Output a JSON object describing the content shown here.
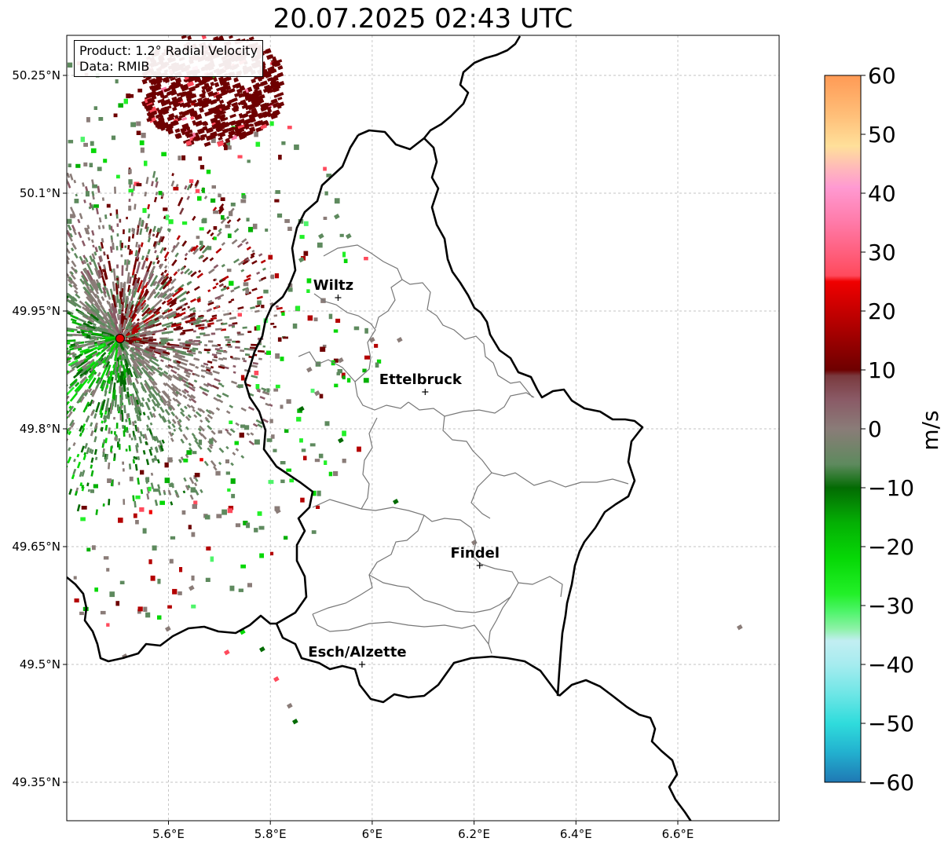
{
  "title": "20.07.2025 02:43 UTC",
  "info": {
    "product": "Product: 1.2° Radial Velocity",
    "source": "Data: RMIB"
  },
  "map": {
    "lon_range": [
      5.4,
      6.8
    ],
    "lat_range": [
      49.3,
      50.3
    ],
    "x_ticks": [
      {
        "lon": 5.6,
        "label": "5.6°E"
      },
      {
        "lon": 5.8,
        "label": "5.8°E"
      },
      {
        "lon": 6.0,
        "label": "6°E"
      },
      {
        "lon": 6.2,
        "label": "6.2°E"
      },
      {
        "lon": 6.4,
        "label": "6.4°E"
      },
      {
        "lon": 6.6,
        "label": "6.6°E"
      }
    ],
    "y_ticks": [
      {
        "lat": 50.25,
        "label": "50.25°N"
      },
      {
        "lat": 50.1,
        "label": "50.1°N"
      },
      {
        "lat": 49.95,
        "label": "49.95°N"
      },
      {
        "lat": 49.8,
        "label": "49.8°N"
      },
      {
        "lat": 49.65,
        "label": "49.65°N"
      },
      {
        "lat": 49.5,
        "label": "49.5°N"
      },
      {
        "lat": 49.35,
        "label": "49.35°N"
      }
    ],
    "gridlines": true,
    "radar_site": {
      "lon": 5.505,
      "lat": 49.915,
      "color": "#e00000"
    },
    "cities": [
      {
        "name": "Wiltz",
        "lon": 5.933,
        "lat": 49.967
      },
      {
        "name": "Ettelbruck",
        "lon": 6.104,
        "lat": 49.847
      },
      {
        "name": "Findel",
        "lon": 6.211,
        "lat": 49.626
      },
      {
        "name": "Esch/Alzette",
        "lon": 5.98,
        "lat": 49.5
      }
    ]
  },
  "colorbar": {
    "label": "m/s",
    "range": [
      -60,
      60
    ],
    "ticks": [
      {
        "value": 60,
        "label": "60"
      },
      {
        "value": 50,
        "label": "50"
      },
      {
        "value": 40,
        "label": "40"
      },
      {
        "value": 30,
        "label": "30"
      },
      {
        "value": 20,
        "label": "20"
      },
      {
        "value": 10,
        "label": "10"
      },
      {
        "value": 0,
        "label": "0"
      },
      {
        "value": -10,
        "label": "−10"
      },
      {
        "value": -20,
        "label": "−20"
      },
      {
        "value": -30,
        "label": "−30"
      },
      {
        "value": -40,
        "label": "−40"
      },
      {
        "value": -50,
        "label": "−50"
      },
      {
        "value": -60,
        "label": "−60"
      }
    ],
    "stops": [
      {
        "value": -60,
        "color": "#1f78b4"
      },
      {
        "value": -55,
        "color": "#22b0cf"
      },
      {
        "value": -50,
        "color": "#2fdcdc"
      },
      {
        "value": -45,
        "color": "#6ee6e6"
      },
      {
        "value": -40,
        "color": "#a6ecef"
      },
      {
        "value": -36,
        "color": "#c2eef2"
      },
      {
        "value": -34,
        "color": "#8ef2a8"
      },
      {
        "value": -31,
        "color": "#4ef46a"
      },
      {
        "value": -28,
        "color": "#22f028"
      },
      {
        "value": -22,
        "color": "#06d806"
      },
      {
        "value": -16,
        "color": "#04b004"
      },
      {
        "value": -10,
        "color": "#036b03"
      },
      {
        "value": -6,
        "color": "#5e8a5e"
      },
      {
        "value": 0,
        "color": "#8a7c78"
      },
      {
        "value": 5,
        "color": "#8a5a66"
      },
      {
        "value": 9,
        "color": "#7a3a3e"
      },
      {
        "value": 10,
        "color": "#6e0000"
      },
      {
        "value": 18,
        "color": "#b40000"
      },
      {
        "value": 25,
        "color": "#f00000"
      },
      {
        "value": 26,
        "color": "#ff4a5c"
      },
      {
        "value": 35,
        "color": "#ff7aa8"
      },
      {
        "value": 41,
        "color": "#ff9ad2"
      },
      {
        "value": 44,
        "color": "#ffb6bc"
      },
      {
        "value": 48,
        "color": "#ffe09a"
      },
      {
        "value": 53,
        "color": "#ffc07a"
      },
      {
        "value": 60,
        "color": "#ff9a55"
      }
    ]
  }
}
